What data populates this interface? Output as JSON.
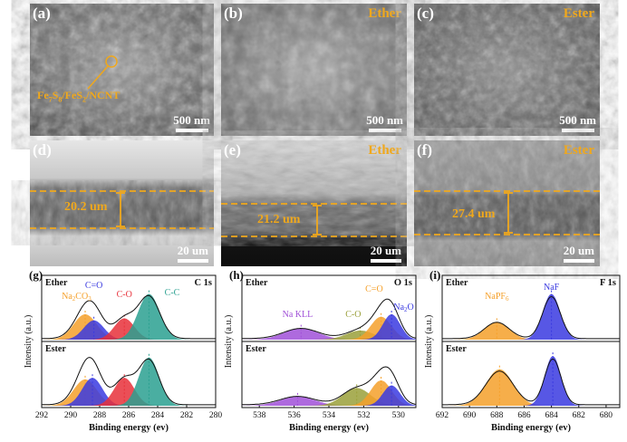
{
  "sem": {
    "a": {
      "label": "(a)",
      "scale": "500 nm",
      "annotation_main": "Fe",
      "annotation_sub1": "7",
      "annotation_mid1": "S",
      "annotation_sub2": "8",
      "annotation_mid2": "/FeS",
      "annotation_sub3": "2",
      "annotation_end": "/NCNT"
    },
    "b": {
      "label": "(b)",
      "condition": "Ether",
      "scale": "500 nm"
    },
    "c": {
      "label": "(c)",
      "condition": "Ester",
      "scale": "500 nm"
    },
    "d": {
      "label": "(d)",
      "thickness": "20.2 um",
      "scale": "20 um"
    },
    "e": {
      "label": "(e)",
      "condition": "Ether",
      "thickness": "21.2 um",
      "scale": "20 um"
    },
    "f": {
      "label": "(f)",
      "condition": "Ester",
      "thickness": "27.4 um",
      "scale": "20 um"
    }
  },
  "colors": {
    "orange": "#f5a02a",
    "blue": "#3a3ae0",
    "red": "#e8303a",
    "teal": "#2aa090",
    "purple": "#a050d8",
    "olive": "#9aa03a",
    "annot": "#f0a81c"
  },
  "chart_data": [
    {
      "type": "area",
      "panel": "(g)",
      "title": "C 1s",
      "xlabel": "Binding energy (ev)",
      "ylabel": "Intensity (a.u.)",
      "xlim": [
        292,
        280
      ],
      "xticks": [
        292,
        290,
        288,
        286,
        284,
        282,
        280
      ],
      "rows": [
        {
          "name": "Ether",
          "peaks": [
            {
              "label": "Na2CO3",
              "center": 289.0,
              "height": 0.5,
              "width": 0.8,
              "color": "#f5a02a"
            },
            {
              "label": "C=O",
              "center": 288.4,
              "height": 0.38,
              "width": 0.7,
              "color": "#3a3ae0"
            },
            {
              "label": "C-O",
              "center": 286.3,
              "height": 0.42,
              "width": 0.7,
              "color": "#e8303a"
            },
            {
              "label": "C-C",
              "center": 284.6,
              "height": 0.9,
              "width": 0.75,
              "color": "#2aa090"
            }
          ]
        },
        {
          "name": "Ester",
          "peaks": [
            {
              "label": "Na2CO3",
              "center": 289.0,
              "height": 0.52,
              "width": 0.8,
              "color": "#f5a02a"
            },
            {
              "label": "C=O",
              "center": 288.5,
              "height": 0.55,
              "width": 0.7,
              "color": "#3a3ae0"
            },
            {
              "label": "C-O",
              "center": 286.3,
              "height": 0.55,
              "width": 0.7,
              "color": "#e8303a"
            },
            {
              "label": "C-C",
              "center": 284.6,
              "height": 0.95,
              "width": 0.7,
              "color": "#2aa090"
            }
          ]
        }
      ]
    },
    {
      "type": "area",
      "panel": "(h)",
      "title": "O 1s",
      "xlabel": "Binding energy (ev)",
      "ylabel": "Intensity (a.u.)",
      "xlim": [
        539,
        529
      ],
      "xticks": [
        538,
        536,
        534,
        532,
        530
      ],
      "rows": [
        {
          "name": "Ether",
          "peaks": [
            {
              "label": "Na KLL",
              "center": 535.6,
              "height": 0.22,
              "width": 1.0,
              "color": "#a050d8"
            },
            {
              "label": "C-O",
              "center": 532.2,
              "height": 0.18,
              "width": 0.8,
              "color": "#9aa03a"
            },
            {
              "label": "C=O",
              "center": 531.0,
              "height": 0.45,
              "width": 0.6,
              "color": "#f5a02a"
            },
            {
              "label": "Na2O",
              "center": 530.4,
              "height": 0.5,
              "width": 0.5,
              "color": "#3a3ae0"
            }
          ]
        },
        {
          "name": "Ester",
          "peaks": [
            {
              "label": "Na KLL",
              "center": 535.8,
              "height": 0.18,
              "width": 1.0,
              "color": "#a050d8"
            },
            {
              "label": "C-O",
              "center": 532.4,
              "height": 0.35,
              "width": 0.8,
              "color": "#9aa03a"
            },
            {
              "label": "C=O",
              "center": 531.0,
              "height": 0.5,
              "width": 0.6,
              "color": "#f5a02a"
            },
            {
              "label": "Na2O",
              "center": 530.4,
              "height": 0.4,
              "width": 0.5,
              "color": "#3a3ae0"
            }
          ]
        }
      ]
    },
    {
      "type": "area",
      "panel": "(i)",
      "title": "F 1s",
      "xlabel": "Binding energy (ev)",
      "ylabel": "Intensity (a.u.)",
      "xlim": [
        692,
        679
      ],
      "xticks": [
        692,
        690,
        688,
        686,
        684,
        682,
        680
      ],
      "rows": [
        {
          "name": "Ether",
          "peaks": [
            {
              "label": "NaPF6",
              "center": 688.0,
              "height": 0.35,
              "width": 0.9,
              "color": "#f5a02a"
            },
            {
              "label": "NaF",
              "center": 684.0,
              "height": 0.9,
              "width": 0.65,
              "color": "#3a3ae0"
            }
          ]
        },
        {
          "name": "Ester",
          "peaks": [
            {
              "label": "NaPF6",
              "center": 687.8,
              "height": 0.72,
              "width": 1.0,
              "color": "#f5a02a"
            },
            {
              "label": "NaF",
              "center": 683.9,
              "height": 0.98,
              "width": 0.6,
              "color": "#3a3ae0"
            }
          ]
        }
      ]
    }
  ],
  "xps_labels": {
    "g": {
      "label": "(g)",
      "c1": "Na",
      "c1s": "2",
      "c2": "CO",
      "c2s": "3",
      "co": "C=O",
      "cmo": "C-O",
      "cc": "C-C"
    },
    "h": {
      "label": "(h)",
      "nakll": "Na KLL",
      "co": "C-O",
      "cdo": "C=O",
      "na2o1": "Na",
      "na2o2": "2",
      "na2o3": "O"
    },
    "i": {
      "label": "(i)",
      "napf1": "NaPF",
      "napf2": "6",
      "naf": "NaF"
    }
  }
}
